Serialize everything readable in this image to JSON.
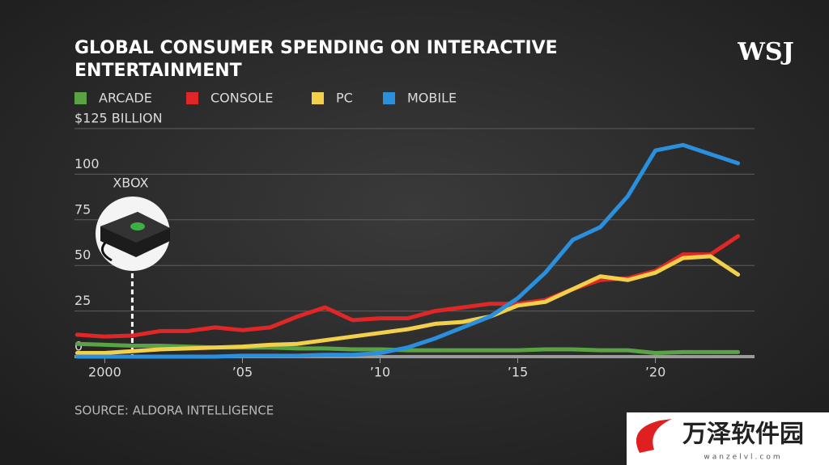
{
  "logo": "WSJ",
  "watermark": {
    "text": "万泽软件园",
    "url": "wanzelvl.com"
  },
  "chart_data": {
    "type": "line",
    "title": [
      "GLOBAL CONSUMER SPENDING ON INTERACTIVE",
      "ENTERTAINMENT"
    ],
    "source": "SOURCE: ALDORA INTELLIGENCE",
    "x": [
      1999,
      2000,
      2001,
      2002,
      2003,
      2004,
      2005,
      2006,
      2007,
      2008,
      2009,
      2010,
      2011,
      2012,
      2013,
      2014,
      2015,
      2016,
      2017,
      2018,
      2019,
      2020,
      2021,
      2022,
      2023
    ],
    "series": [
      {
        "name": "ARCADE",
        "color": "#5aa344",
        "values": [
          7,
          6.5,
          6,
          6,
          5.5,
          5,
          5,
          5,
          4.5,
          4.5,
          4,
          4,
          3.5,
          3.5,
          3.5,
          3.5,
          3.5,
          4,
          4,
          3.5,
          3.5,
          2,
          2.5,
          2.5,
          2.5
        ]
      },
      {
        "name": "CONSOLE",
        "color": "#e02727",
        "values": [
          12,
          11,
          11.5,
          14,
          14,
          16,
          14.5,
          16,
          22,
          27,
          20,
          21,
          21,
          25,
          27,
          29,
          29,
          31,
          37,
          42,
          43,
          47,
          56,
          56,
          66
        ]
      },
      {
        "name": "PC",
        "color": "#f2d04b",
        "values": [
          2,
          2,
          3,
          4,
          4.5,
          5,
          5.5,
          6.5,
          7,
          9,
          11,
          13,
          15,
          18,
          19,
          22,
          28,
          30,
          37,
          44,
          42,
          46,
          54,
          55,
          45
        ]
      },
      {
        "name": "MOBILE",
        "color": "#2a8fdc",
        "values": [
          0,
          0,
          0,
          0,
          0,
          0,
          0.5,
          0.5,
          0.5,
          1,
          1,
          2,
          5,
          10,
          16,
          22,
          32,
          46,
          64,
          71,
          88,
          113,
          116,
          111,
          106
        ]
      }
    ],
    "xlim": [
      1998.9,
      2023.6
    ],
    "xticks": [
      2000,
      {
        "value": 2005,
        "label": "’05"
      },
      {
        "value": 2010,
        "label": "’10"
      },
      {
        "value": 2015,
        "label": "’15"
      },
      {
        "value": 2020,
        "label": "’20"
      }
    ],
    "ylim": [
      0,
      125
    ],
    "yticks": [
      0,
      25,
      50,
      75,
      100,
      {
        "value": 125,
        "label": "$125 BILLION"
      }
    ],
    "grid": true,
    "annotations": [
      {
        "text": "XBOX",
        "x": 2001
      }
    ]
  }
}
